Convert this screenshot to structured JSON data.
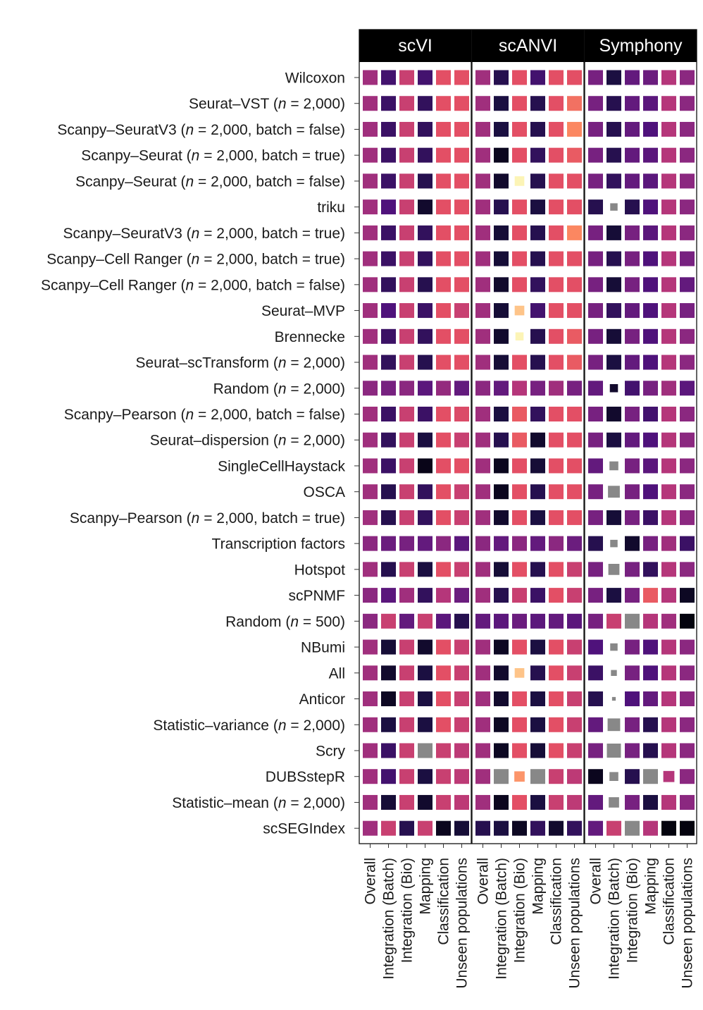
{
  "chart_data": {
    "type": "heatmap",
    "panels": [
      "scVI",
      "scANVI",
      "Symphony"
    ],
    "metrics": [
      "Overall",
      "Integration (Batch)",
      "Integration (Bio)",
      "Mapping",
      "Classification",
      "Unseen populations"
    ],
    "methods": [
      "Wilcoxon",
      "Seurat–VST (n = 2,000)",
      "Scanpy–SeuratV3 (n = 2,000, batch = false)",
      "Scanpy–Seurat (n = 2,000, batch = true)",
      "Scanpy–Seurat (n = 2,000, batch = false)",
      "triku",
      "Scanpy–SeuratV3 (n = 2,000, batch = true)",
      "Scanpy–Cell Ranger (n = 2,000, batch = true)",
      "Scanpy–Cell Ranger (n = 2,000, batch = false)",
      "Seurat–MVP",
      "Brennecke",
      "Seurat–scTransform (n = 2,000)",
      "Random (n = 2,000)",
      "Scanpy–Pearson (n = 2,000, batch = false)",
      "Seurat–dispersion (n = 2,000)",
      "SingleCellHaystack",
      "OSCA",
      "Scanpy–Pearson (n = 2,000, batch = true)",
      "Transcription factors",
      "Hotspot",
      "scPNMF",
      "Random (n = 500)",
      "NBumi",
      "All",
      "Anticor",
      "Statistic–variance (n = 2,000)",
      "Scry",
      "DUBSstepR",
      "Statistic–mean (n = 2,000)",
      "scSEGIndex"
    ],
    "colorscale": [
      "#000004",
      "#1c1044",
      "#4f127b",
      "#812581",
      "#b5367a",
      "#e55064",
      "#fb8761",
      "#fec287",
      "#fcfdbf"
    ],
    "missing_color": "#888888",
    "values": {
      "scVI": [
        [
          0.45,
          0.22,
          0.55,
          0.22,
          0.62,
          0.62
        ],
        [
          0.45,
          0.2,
          0.55,
          0.18,
          0.62,
          0.62
        ],
        [
          0.45,
          0.2,
          0.55,
          0.18,
          0.62,
          0.62
        ],
        [
          0.45,
          0.2,
          0.55,
          0.18,
          0.62,
          0.62
        ],
        [
          0.45,
          0.2,
          0.55,
          0.15,
          0.62,
          0.62
        ],
        [
          0.45,
          0.25,
          0.55,
          0.08,
          0.62,
          0.62
        ],
        [
          0.45,
          0.2,
          0.55,
          0.18,
          0.62,
          0.62
        ],
        [
          0.45,
          0.2,
          0.55,
          0.18,
          0.62,
          0.62
        ],
        [
          0.45,
          0.18,
          0.55,
          0.15,
          0.62,
          0.62
        ],
        [
          0.45,
          0.25,
          0.55,
          0.2,
          0.62,
          0.55
        ],
        [
          0.45,
          0.2,
          0.55,
          0.18,
          0.62,
          0.62
        ],
        [
          0.45,
          0.18,
          0.55,
          0.15,
          0.62,
          0.62
        ],
        [
          0.4,
          0.35,
          0.4,
          0.28,
          0.42,
          0.3
        ],
        [
          0.45,
          0.2,
          0.55,
          0.2,
          0.62,
          0.6
        ],
        [
          0.45,
          0.18,
          0.55,
          0.12,
          0.62,
          0.55
        ],
        [
          0.45,
          0.2,
          0.55,
          0.04,
          0.62,
          0.62
        ],
        [
          0.45,
          0.15,
          0.55,
          0.18,
          0.62,
          0.55
        ],
        [
          0.45,
          0.15,
          0.55,
          0.18,
          0.62,
          0.55
        ],
        [
          0.4,
          0.32,
          0.35,
          0.3,
          0.4,
          0.28
        ],
        [
          0.45,
          0.15,
          0.55,
          0.12,
          0.62,
          0.55
        ],
        [
          0.4,
          0.28,
          0.45,
          0.18,
          0.5,
          0.32
        ],
        [
          0.4,
          0.55,
          0.3,
          0.55,
          0.28,
          0.15
        ],
        [
          0.45,
          0.1,
          0.55,
          0.08,
          0.62,
          0.55
        ],
        [
          0.45,
          0.08,
          0.55,
          0.12,
          0.62,
          0.55
        ],
        [
          0.45,
          0.06,
          0.55,
          0.12,
          0.62,
          0.55
        ],
        [
          0.45,
          0.12,
          0.55,
          0.12,
          0.62,
          0.55
        ],
        [
          0.45,
          0.2,
          0.55,
          null,
          0.55,
          0.52
        ],
        [
          0.45,
          0.22,
          0.55,
          0.12,
          0.55,
          0.52
        ],
        [
          0.45,
          0.1,
          0.55,
          0.08,
          0.55,
          0.52
        ],
        [
          0.45,
          0.55,
          0.15,
          0.55,
          0.05,
          0.1
        ]
      ],
      "scANVI": [
        [
          0.45,
          0.15,
          0.62,
          0.22,
          0.62,
          0.62
        ],
        [
          0.45,
          0.12,
          0.62,
          0.15,
          0.62,
          0.7
        ],
        [
          0.45,
          0.12,
          0.62,
          0.15,
          0.62,
          0.75
        ],
        [
          0.45,
          0.05,
          0.62,
          0.18,
          0.62,
          0.65
        ],
        [
          0.45,
          0.08,
          0.98,
          0.15,
          0.62,
          0.62
        ],
        [
          0.45,
          0.15,
          0.62,
          0.12,
          0.62,
          0.62
        ],
        [
          0.45,
          0.1,
          0.62,
          0.15,
          0.62,
          0.75
        ],
        [
          0.45,
          0.1,
          0.62,
          0.15,
          0.62,
          0.62
        ],
        [
          0.45,
          0.08,
          0.62,
          0.18,
          0.62,
          0.62
        ],
        [
          0.45,
          0.1,
          0.88,
          0.22,
          0.62,
          0.62
        ],
        [
          0.45,
          0.08,
          0.98,
          0.15,
          0.62,
          0.65
        ],
        [
          0.45,
          0.1,
          0.62,
          0.15,
          0.62,
          0.65
        ],
        [
          0.4,
          0.3,
          0.5,
          0.35,
          0.45,
          0.35
        ],
        [
          0.45,
          0.12,
          0.65,
          0.18,
          0.62,
          0.62
        ],
        [
          0.45,
          0.15,
          0.65,
          0.08,
          0.62,
          0.62
        ],
        [
          0.45,
          0.05,
          0.62,
          0.1,
          0.62,
          0.62
        ],
        [
          0.45,
          0.05,
          0.62,
          0.15,
          0.62,
          0.62
        ],
        [
          0.45,
          0.08,
          0.62,
          0.12,
          0.62,
          0.62
        ],
        [
          0.4,
          0.3,
          0.4,
          0.3,
          0.4,
          0.32
        ],
        [
          0.45,
          0.1,
          0.62,
          0.15,
          0.62,
          0.55
        ],
        [
          0.45,
          0.15,
          0.55,
          0.2,
          0.62,
          0.55
        ],
        [
          0.3,
          0.28,
          0.32,
          0.28,
          0.3,
          0.28
        ],
        [
          0.45,
          0.06,
          0.62,
          0.12,
          0.62,
          0.55
        ],
        [
          0.45,
          0.08,
          0.88,
          0.15,
          0.62,
          0.55
        ],
        [
          0.45,
          0.08,
          0.62,
          0.12,
          0.62,
          0.55
        ],
        [
          0.45,
          0.06,
          0.62,
          0.12,
          0.62,
          0.55
        ],
        [
          0.45,
          0.06,
          0.62,
          0.1,
          0.62,
          0.55
        ],
        [
          0.45,
          null,
          0.78,
          null,
          0.55,
          0.52
        ],
        [
          0.45,
          0.05,
          0.62,
          0.12,
          0.55,
          0.52
        ],
        [
          0.15,
          0.12,
          0.06,
          0.18,
          0.08,
          0.18
        ]
      ],
      "Symphony": [
        [
          0.35,
          0.12,
          0.3,
          0.32,
          0.5,
          0.4
        ],
        [
          0.35,
          0.15,
          0.3,
          0.28,
          0.5,
          0.4
        ],
        [
          0.35,
          0.15,
          0.3,
          0.25,
          0.5,
          0.4
        ],
        [
          0.35,
          0.15,
          0.3,
          0.28,
          0.5,
          0.4
        ],
        [
          0.35,
          0.18,
          0.3,
          0.28,
          0.5,
          0.4
        ],
        [
          0.15,
          null,
          0.15,
          0.25,
          0.5,
          0.4
        ],
        [
          0.35,
          0.1,
          0.35,
          0.28,
          0.5,
          0.4
        ],
        [
          0.35,
          0.15,
          0.35,
          0.25,
          0.5,
          0.35
        ],
        [
          0.35,
          0.1,
          0.35,
          0.25,
          0.5,
          0.3
        ],
        [
          0.35,
          0.18,
          0.3,
          0.25,
          0.5,
          0.35
        ],
        [
          0.35,
          0.1,
          0.35,
          0.25,
          0.5,
          0.4
        ],
        [
          0.35,
          0.12,
          0.3,
          0.25,
          0.5,
          0.4
        ],
        [
          0.3,
          0.08,
          0.22,
          0.35,
          0.45,
          0.28
        ],
        [
          0.35,
          0.08,
          0.35,
          0.22,
          0.5,
          0.4
        ],
        [
          0.35,
          0.12,
          0.3,
          0.25,
          0.5,
          0.4
        ],
        [
          0.3,
          null,
          0.35,
          0.28,
          0.5,
          0.4
        ],
        [
          0.35,
          null,
          0.35,
          0.25,
          0.5,
          0.4
        ],
        [
          0.35,
          0.1,
          0.35,
          0.2,
          0.5,
          0.4
        ],
        [
          0.15,
          null,
          0.08,
          0.35,
          0.45,
          0.2
        ],
        [
          0.35,
          null,
          0.35,
          0.18,
          0.5,
          0.4
        ],
        [
          0.35,
          0.12,
          0.35,
          0.65,
          0.5,
          0.06
        ],
        [
          0.35,
          0.55,
          null,
          0.5,
          0.45,
          0.02
        ],
        [
          0.25,
          null,
          0.35,
          0.25,
          0.5,
          0.4
        ],
        [
          0.2,
          null,
          0.35,
          0.25,
          0.5,
          0.4
        ],
        [
          0.15,
          null,
          0.25,
          0.3,
          0.5,
          0.4
        ],
        [
          0.3,
          null,
          0.35,
          0.15,
          0.5,
          0.4
        ],
        [
          0.35,
          null,
          0.35,
          0.15,
          0.5,
          0.4
        ],
        [
          0.05,
          null,
          0.15,
          null,
          0.5,
          0.4
        ],
        [
          0.3,
          null,
          0.35,
          0.12,
          0.5,
          0.4
        ],
        [
          0.3,
          0.55,
          null,
          0.5,
          0.02,
          0.02
        ]
      ]
    },
    "sizes": {
      "scVI": [],
      "scANVI": [
        [],
        [],
        [],
        [],
        [
          1,
          1,
          0.65,
          1,
          1,
          1
        ],
        [],
        [],
        [],
        [],
        [
          1,
          1,
          0.65,
          1,
          1,
          1
        ],
        [
          1,
          1,
          0.55,
          1,
          1,
          1
        ],
        [],
        [],
        [],
        [],
        [],
        [],
        [],
        [],
        [],
        [],
        [],
        [],
        [
          1,
          1,
          0.65,
          1,
          1,
          1
        ],
        [],
        [],
        [],
        [
          1,
          1,
          0.7,
          1,
          1,
          1
        ],
        [],
        []
      ],
      "Symphony": [
        [],
        [],
        [],
        [],
        [],
        [
          1,
          0.5,
          1,
          1,
          1,
          1
        ],
        [],
        [],
        [],
        [],
        [],
        [],
        [
          1,
          0.55,
          1,
          1,
          1,
          1
        ],
        [],
        [],
        [
          1,
          0.6,
          1,
          1,
          1,
          1
        ],
        [
          1,
          0.8,
          1,
          1,
          1,
          1
        ],
        [],
        [
          1,
          0.5,
          1,
          1,
          1,
          1
        ],
        [
          1,
          0.75,
          1,
          1,
          1,
          1
        ],
        [],
        [],
        [
          1,
          0.5,
          1,
          1,
          1,
          1
        ],
        [
          1,
          0.4,
          1,
          1,
          1,
          1
        ],
        [
          1,
          0.25,
          1,
          1,
          1,
          1
        ],
        [
          1,
          0.85,
          1,
          1,
          1,
          1
        ],
        [
          1,
          0.95,
          1,
          1,
          1,
          1
        ],
        [
          1,
          0.6,
          1,
          1,
          0.75,
          1
        ],
        [
          1,
          0.7,
          1,
          1,
          1,
          1
        ],
        []
      ]
    }
  }
}
